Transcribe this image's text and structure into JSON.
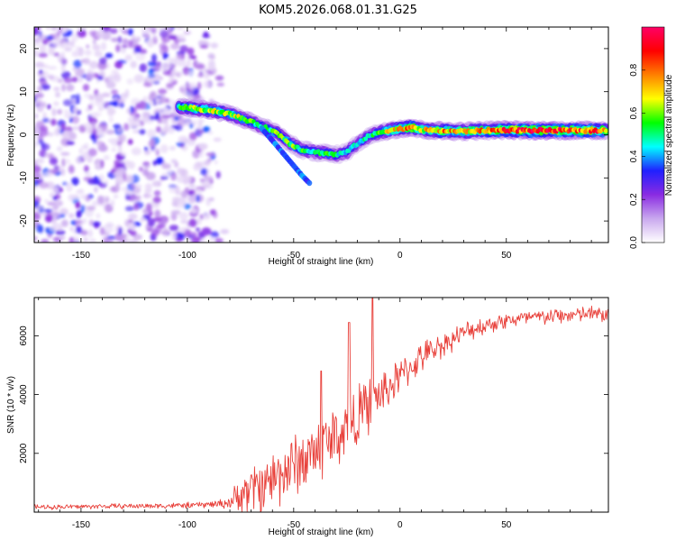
{
  "title": "KOM5.2026.068.01.31.G25",
  "colors": {
    "snr_line": "#e8403a",
    "axis": "#000000"
  },
  "chart_data": [
    {
      "type": "heatmap",
      "name": "spectrogram",
      "xlabel": "Height of straight line (km)",
      "ylabel": "Frequency (Hz)",
      "xlim": [
        -172,
        98
      ],
      "ylim": [
        -25,
        25
      ],
      "xticks": [
        -150,
        -100,
        -50,
        0,
        50
      ],
      "yticks": [
        -20,
        -10,
        0,
        10,
        20
      ],
      "noise_region_x": [
        -172,
        -82
      ],
      "ridge": {
        "x": [
          -104,
          -95,
          -88,
          -80,
          -72,
          -65,
          -58,
          -52,
          -46,
          -40,
          -35,
          -30,
          -25,
          -20,
          -15,
          -10,
          -5,
          0,
          5,
          10,
          20,
          30,
          40,
          50,
          60,
          70,
          80,
          90,
          97
        ],
        "freq": [
          6.5,
          6.0,
          5.6,
          4.8,
          3.4,
          2.0,
          0.5,
          -2.0,
          -3.5,
          -4.0,
          -4.3,
          -4.6,
          -4.0,
          -2.0,
          -0.4,
          0.5,
          1.1,
          1.4,
          1.7,
          1.2,
          0.9,
          0.8,
          1.0,
          1.1,
          1.0,
          1.0,
          1.0,
          1.0,
          1.0
        ],
        "amp": [
          0.6,
          0.7,
          0.65,
          0.7,
          0.6,
          0.55,
          0.6,
          0.6,
          0.55,
          0.5,
          0.55,
          0.5,
          0.5,
          0.45,
          0.5,
          0.55,
          0.7,
          0.75,
          0.9,
          0.7,
          0.8,
          0.75,
          0.8,
          0.95,
          0.9,
          0.95,
          0.9,
          0.92,
          0.85
        ]
      },
      "branch": {
        "x": [
          -65,
          -58,
          -52,
          -46,
          -42
        ],
        "freq": [
          1.5,
          -2.5,
          -6.0,
          -9.5,
          -11.5
        ]
      },
      "colorbar": {
        "label": "Normalized spectral amplitude",
        "range": [
          0,
          1
        ],
        "ticks": [
          0.0,
          0.2,
          0.4,
          0.6,
          0.8
        ],
        "tick_labels": [
          "0.0",
          "0.2",
          "0.4",
          "0.6",
          "0.8"
        ],
        "colors": [
          "#ffffff",
          "#c9a8ee",
          "#8a2be2",
          "#2020ff",
          "#00ffff",
          "#00ff00",
          "#ffff00",
          "#ff8000",
          "#ff0000",
          "#ff0066"
        ]
      }
    },
    {
      "type": "line",
      "name": "snr",
      "xlabel": "Height of straight line (km)",
      "ylabel": "SNR (10 * v/v)",
      "xlim": [
        -172,
        98
      ],
      "ylim": [
        0,
        7300
      ],
      "xticks": [
        -150,
        -100,
        -50,
        0,
        50
      ],
      "yticks": [
        2000,
        4000,
        6000
      ],
      "series": [
        {
          "name": "SNR",
          "x": [
            -172,
            -160,
            -140,
            -120,
            -100,
            -90,
            -82,
            -78,
            -74,
            -70,
            -66,
            -62,
            -58,
            -54,
            -50,
            -46,
            -42,
            -38,
            -34,
            -30,
            -26,
            -22,
            -18,
            -14,
            -10,
            -6,
            -2,
            2,
            6,
            10,
            15,
            20,
            25,
            30,
            35,
            40,
            45,
            50,
            60,
            70,
            80,
            90,
            97
          ],
          "y": [
            170,
            180,
            200,
            210,
            230,
            260,
            300,
            420,
            650,
            800,
            900,
            1050,
            1250,
            1450,
            1600,
            1750,
            1950,
            2150,
            2400,
            2600,
            2800,
            3050,
            3400,
            3700,
            3950,
            4200,
            4450,
            4750,
            5000,
            5250,
            5500,
            5700,
            5900,
            6100,
            6250,
            6350,
            6450,
            6520,
            6600,
            6650,
            6700,
            6750,
            6700
          ],
          "noise_amp": [
            100,
            100,
            100,
            110,
            120,
            140,
            200,
            500,
            800,
            1000,
            1100,
            1200,
            1300,
            1300,
            1300,
            1300,
            1400,
            1400,
            1400,
            1300,
            1300,
            1200,
            1200,
            1100,
            1000,
            900,
            800,
            700,
            650,
            600,
            550,
            500,
            450,
            420,
            400,
            380,
            360,
            350,
            340,
            330,
            330,
            330,
            330
          ]
        }
      ],
      "spikes": [
        {
          "x": -24,
          "y": 6450
        },
        {
          "x": -13,
          "y": 7280
        },
        {
          "x": -37,
          "y": 4800
        }
      ]
    }
  ]
}
